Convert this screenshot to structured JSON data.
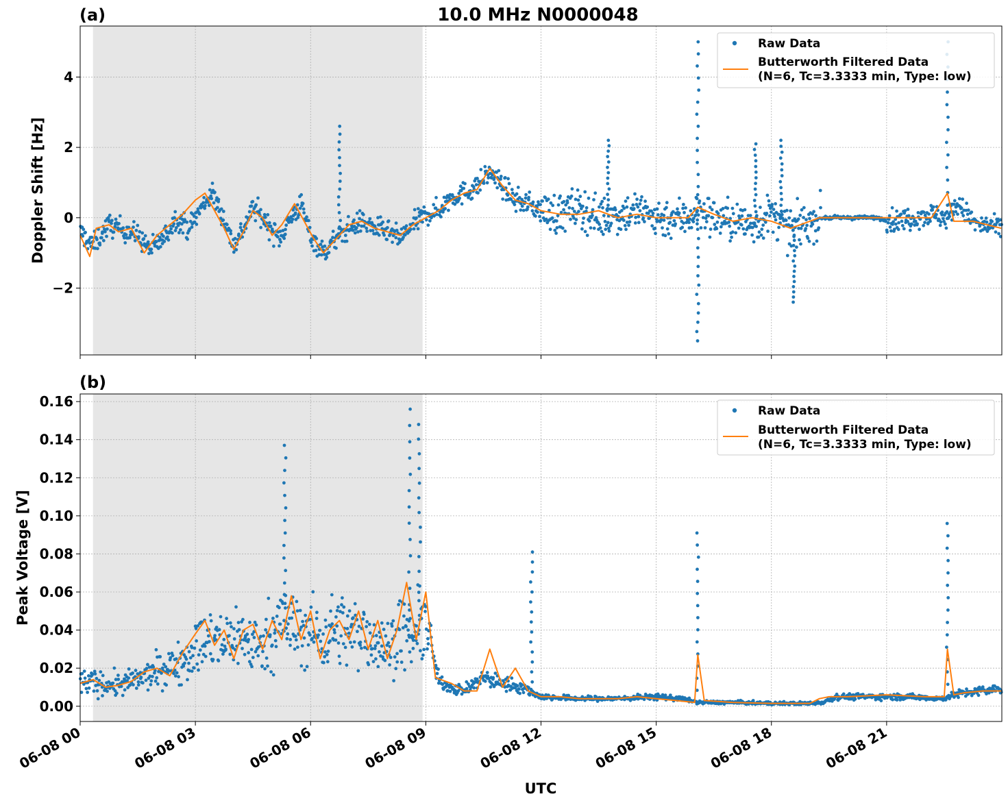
{
  "figure": {
    "title": "10.0 MHz N0000048",
    "xlabel": "UTC"
  },
  "colors": {
    "raw": "#1f77b4",
    "filtered": "#ff7f0e",
    "night_shade": "#e6e6e6",
    "grid": "#b0b0b0"
  },
  "chart_data": [
    {
      "type": "scatter",
      "panel_label": "(a)",
      "ylabel": "Doppler Shift [Hz]",
      "xlim": [
        "06-08 00:00",
        "06-09 00:00"
      ],
      "ylim": [
        -3.9,
        5.45
      ],
      "yticks": [
        -2,
        0,
        2,
        4
      ],
      "ytick_labels": [
        "−2",
        "0",
        "2",
        "4"
      ],
      "xticks": [
        "06-08 00:00",
        "06-08 03:00",
        "06-08 06:00",
        "06-08 09:00",
        "06-08 12:00",
        "06-08 15:00",
        "06-08 18:00",
        "06-08 21:00"
      ],
      "grid": true,
      "shaded_interval": [
        "06-08 00:20",
        "06-08 08:55"
      ],
      "legend": {
        "position": "top-right",
        "entries": [
          "Raw Data",
          "Butterworth Filtered Data",
          "(N=6, Tc=3.3333 min, Type: low)"
        ]
      },
      "series": [
        {
          "name": "Raw Data",
          "style": "points",
          "x": [
            "06-08 00:00",
            "06-08 00:20",
            "06-08 00:45",
            "06-08 01:10",
            "06-08 01:30",
            "06-08 01:50",
            "06-08 02:10",
            "06-08 02:30",
            "06-08 02:50",
            "06-08 03:10",
            "06-08 03:25",
            "06-08 03:40",
            "06-08 04:00",
            "06-08 04:15",
            "06-08 04:30",
            "06-08 04:50",
            "06-08 05:10",
            "06-08 05:30",
            "06-08 05:45",
            "06-08 06:00",
            "06-08 06:20",
            "06-08 06:40",
            "06-08 07:00",
            "06-08 07:20",
            "06-08 07:40",
            "06-08 08:00",
            "06-08 08:20",
            "06-08 08:40",
            "06-08 09:00",
            "06-08 09:20",
            "06-08 09:40",
            "06-08 10:00",
            "06-08 10:20",
            "06-08 10:40",
            "06-08 11:00",
            "06-08 11:20",
            "06-08 11:40",
            "06-08 12:00",
            "06-08 12:30",
            "06-08 13:00",
            "06-08 13:30",
            "06-08 14:00",
            "06-08 14:30",
            "06-08 15:00",
            "06-08 15:30",
            "06-08 15:45",
            "06-08 16:05",
            "06-08 16:30",
            "06-08 17:00",
            "06-08 17:30",
            "06-08 18:00",
            "06-08 18:30",
            "06-08 19:00",
            "06-08 19:20",
            "06-08 19:45",
            "06-08 20:15",
            "06-08 20:45",
            "06-08 21:10",
            "06-08 21:40",
            "06-08 22:10",
            "06-08 22:35",
            "06-08 22:50",
            "06-08 23:20",
            "06-08 23:59"
          ],
          "y": [
            -0.4,
            -0.8,
            -0.2,
            -0.35,
            -0.5,
            -0.9,
            -0.6,
            0.0,
            -0.3,
            0.3,
            0.7,
            0.2,
            -0.8,
            -0.3,
            0.3,
            -0.1,
            -0.6,
            0.0,
            0.4,
            -0.5,
            -1.0,
            -0.6,
            -0.3,
            -0.1,
            -0.3,
            -0.4,
            -0.6,
            -0.2,
            0.1,
            0.2,
            0.6,
            0.7,
            0.9,
            1.3,
            0.9,
            0.5,
            0.4,
            0.2,
            0.1,
            0.3,
            0.0,
            0.1,
            0.2,
            0.0,
            0.0,
            0.0,
            0.2,
            0.0,
            -0.1,
            -0.2,
            0.1,
            -0.4,
            -0.1,
            0.0,
            0.0,
            0.0,
            0.0,
            -0.1,
            0.0,
            0.1,
            0.0,
            0.4,
            -0.2,
            -0.3
          ],
          "spikes": [
            {
              "x": "06-08 06:45",
              "y": 2.6
            },
            {
              "x": "06-08 13:45",
              "y": 2.2
            },
            {
              "x": "06-08 16:05",
              "y": 5.0
            },
            {
              "x": "06-08 16:05",
              "y": -3.5
            },
            {
              "x": "06-08 17:35",
              "y": 2.1
            },
            {
              "x": "06-08 18:15",
              "y": 2.2
            },
            {
              "x": "06-08 18:35",
              "y": -2.4
            },
            {
              "x": "06-08 22:35",
              "y": 5.0
            }
          ]
        },
        {
          "name": "Butterworth Filtered Data",
          "style": "line",
          "x": [
            "06-08 00:00",
            "06-08 00:15",
            "06-08 00:25",
            "06-08 00:45",
            "06-08 01:00",
            "06-08 01:20",
            "06-08 01:40",
            "06-08 02:00",
            "06-08 02:20",
            "06-08 02:40",
            "06-08 03:00",
            "06-08 03:15",
            "06-08 03:30",
            "06-08 03:45",
            "06-08 04:00",
            "06-08 04:15",
            "06-08 04:30",
            "06-08 04:45",
            "06-08 05:00",
            "06-08 05:15",
            "06-08 05:35",
            "06-08 05:50",
            "06-08 06:05",
            "06-08 06:20",
            "06-08 06:40",
            "06-08 07:00",
            "06-08 07:20",
            "06-08 07:40",
            "06-08 08:00",
            "06-08 08:20",
            "06-08 08:40",
            "06-08 09:00",
            "06-08 09:20",
            "06-08 09:40",
            "06-08 10:00",
            "06-08 10:20",
            "06-08 10:40",
            "06-08 11:00",
            "06-08 11:20",
            "06-08 11:40",
            "06-08 12:00",
            "06-08 12:30",
            "06-08 13:00",
            "06-08 13:30",
            "06-08 14:00",
            "06-08 14:30",
            "06-08 15:00",
            "06-08 15:30",
            "06-08 15:50",
            "06-08 16:05",
            "06-08 16:30",
            "06-08 17:00",
            "06-08 17:30",
            "06-08 18:00",
            "06-08 18:30",
            "06-08 19:00",
            "06-08 19:15",
            "06-08 19:40",
            "06-08 20:30",
            "06-08 21:00",
            "06-08 21:40",
            "06-08 22:10",
            "06-08 22:35",
            "06-08 22:45",
            "06-08 23:15",
            "06-08 23:59"
          ],
          "y": [
            -0.5,
            -1.1,
            -0.3,
            -0.2,
            -0.4,
            -0.3,
            -1.0,
            -0.5,
            -0.2,
            0.1,
            0.5,
            0.7,
            0.2,
            -0.3,
            -0.9,
            -0.4,
            0.2,
            0.0,
            -0.5,
            -0.2,
            0.4,
            -0.1,
            -0.6,
            -1.0,
            -0.6,
            -0.2,
            -0.1,
            -0.3,
            -0.4,
            -0.5,
            -0.2,
            0.0,
            0.2,
            0.5,
            0.7,
            0.8,
            1.4,
            0.9,
            0.5,
            0.4,
            0.2,
            0.1,
            0.1,
            0.2,
            0.0,
            0.1,
            0.0,
            0.0,
            0.0,
            0.3,
            0.1,
            -0.1,
            0.0,
            -0.1,
            -0.3,
            -0.1,
            0.0,
            0.0,
            0.0,
            0.0,
            0.0,
            0.0,
            0.7,
            -0.1,
            -0.1,
            -0.3
          ]
        }
      ]
    },
    {
      "type": "scatter",
      "panel_label": "(b)",
      "ylabel": "Peak Voltage [V]",
      "xlim": [
        "06-08 00:00",
        "06-09 00:00"
      ],
      "ylim": [
        -0.008,
        0.164
      ],
      "yticks": [
        0.0,
        0.02,
        0.04,
        0.06,
        0.08,
        0.1,
        0.12,
        0.14,
        0.16
      ],
      "ytick_labels": [
        "0.00",
        "0.02",
        "0.04",
        "0.06",
        "0.08",
        "0.10",
        "0.12",
        "0.14",
        "0.16"
      ],
      "xticks": [
        "06-08 00:00",
        "06-08 03:00",
        "06-08 06:00",
        "06-08 09:00",
        "06-08 12:00",
        "06-08 15:00",
        "06-08 18:00",
        "06-08 21:00"
      ],
      "xtick_labels": [
        "06-08 00",
        "06-08 03",
        "06-08 06",
        "06-08 09",
        "06-08 12",
        "06-08 15",
        "06-08 18",
        "06-08 21"
      ],
      "grid": true,
      "shaded_interval": [
        "06-08 00:20",
        "06-08 08:55"
      ],
      "legend": {
        "position": "top-right",
        "entries": [
          "Raw Data",
          "Butterworth Filtered Data",
          "(N=6, Tc=3.3333 min, Type: low)"
        ]
      },
      "series": [
        {
          "name": "Raw Data",
          "style": "points",
          "x": [
            "06-08 00:00",
            "06-08 00:30",
            "06-08 01:00",
            "06-08 01:30",
            "06-08 02:00",
            "06-08 02:30",
            "06-08 03:00",
            "06-08 03:20",
            "06-08 03:40",
            "06-08 04:00",
            "06-08 04:20",
            "06-08 04:40",
            "06-08 05:00",
            "06-08 05:20",
            "06-08 05:40",
            "06-08 06:00",
            "06-08 06:20",
            "06-08 06:40",
            "06-08 07:00",
            "06-08 07:20",
            "06-08 07:40",
            "06-08 08:00",
            "06-08 08:20",
            "06-08 08:40",
            "06-08 09:00",
            "06-08 09:20",
            "06-08 09:40",
            "06-08 10:00",
            "06-08 10:30",
            "06-08 11:00",
            "06-08 11:30",
            "06-08 12:00",
            "06-08 13:00",
            "06-08 14:00",
            "06-08 15:00",
            "06-08 15:40",
            "06-08 16:05",
            "06-08 16:30",
            "06-08 17:00",
            "06-08 18:00",
            "06-08 19:00",
            "06-08 19:20",
            "06-08 19:40",
            "06-08 20:30",
            "06-08 21:30",
            "06-08 22:30",
            "06-08 22:35",
            "06-08 23:00",
            "06-08 23:59"
          ],
          "y": [
            0.013,
            0.012,
            0.011,
            0.014,
            0.018,
            0.022,
            0.03,
            0.035,
            0.032,
            0.038,
            0.035,
            0.03,
            0.04,
            0.045,
            0.038,
            0.04,
            0.035,
            0.042,
            0.038,
            0.04,
            0.035,
            0.03,
            0.04,
            0.035,
            0.045,
            0.013,
            0.01,
            0.008,
            0.015,
            0.012,
            0.01,
            0.005,
            0.004,
            0.004,
            0.005,
            0.004,
            0.002,
            0.002,
            0.002,
            0.0015,
            0.0015,
            0.002,
            0.005,
            0.005,
            0.005,
            0.004,
            0.005,
            0.007,
            0.009
          ],
          "spikes": [
            {
              "x": "06-08 05:20",
              "y": 0.137
            },
            {
              "x": "06-08 08:35",
              "y": 0.156
            },
            {
              "x": "06-08 08:50",
              "y": 0.148
            },
            {
              "x": "06-08 11:45",
              "y": 0.081
            },
            {
              "x": "06-08 16:05",
              "y": 0.091
            },
            {
              "x": "06-08 22:35",
              "y": 0.096
            }
          ]
        },
        {
          "name": "Butterworth Filtered Data",
          "style": "line",
          "x": [
            "06-08 00:00",
            "06-08 00:20",
            "06-08 00:40",
            "06-08 01:00",
            "06-08 01:20",
            "06-08 01:40",
            "06-08 02:00",
            "06-08 02:20",
            "06-08 02:40",
            "06-08 03:00",
            "06-08 03:15",
            "06-08 03:30",
            "06-08 03:45",
            "06-08 04:00",
            "06-08 04:15",
            "06-08 04:30",
            "06-08 04:45",
            "06-08 05:00",
            "06-08 05:15",
            "06-08 05:30",
            "06-08 05:45",
            "06-08 06:00",
            "06-08 06:15",
            "06-08 06:30",
            "06-08 06:45",
            "06-08 07:00",
            "06-08 07:15",
            "06-08 07:30",
            "06-08 07:45",
            "06-08 08:00",
            "06-08 08:15",
            "06-08 08:30",
            "06-08 08:45",
            "06-08 09:00",
            "06-08 09:15",
            "06-08 09:40",
            "06-08 10:00",
            "06-08 10:20",
            "06-08 10:40",
            "06-08 11:00",
            "06-08 11:20",
            "06-08 11:40",
            "06-08 12:00",
            "06-08 12:30",
            "06-08 13:00",
            "06-08 13:30",
            "06-08 14:00",
            "06-08 14:30",
            "06-08 15:00",
            "06-08 15:30",
            "06-08 16:00",
            "06-08 16:05",
            "06-08 16:15",
            "06-08 17:00",
            "06-08 18:00",
            "06-08 19:00",
            "06-08 19:15",
            "06-08 19:30",
            "06-08 20:00",
            "06-08 21:00",
            "06-08 22:00",
            "06-08 22:30",
            "06-08 22:35",
            "06-08 22:45",
            "06-08 23:00",
            "06-08 23:30",
            "06-08 23:59"
          ],
          "y": [
            0.012,
            0.014,
            0.01,
            0.011,
            0.013,
            0.018,
            0.02,
            0.016,
            0.028,
            0.038,
            0.045,
            0.032,
            0.04,
            0.025,
            0.04,
            0.043,
            0.03,
            0.045,
            0.035,
            0.058,
            0.035,
            0.05,
            0.025,
            0.04,
            0.045,
            0.035,
            0.05,
            0.03,
            0.045,
            0.025,
            0.04,
            0.065,
            0.035,
            0.06,
            0.015,
            0.012,
            0.008,
            0.008,
            0.03,
            0.01,
            0.02,
            0.008,
            0.005,
            0.005,
            0.004,
            0.004,
            0.004,
            0.005,
            0.004,
            0.003,
            0.002,
            0.027,
            0.003,
            0.002,
            0.0015,
            0.0015,
            0.004,
            0.005,
            0.005,
            0.006,
            0.005,
            0.005,
            0.03,
            0.006,
            0.007,
            0.008,
            0.008
          ]
        }
      ]
    }
  ]
}
